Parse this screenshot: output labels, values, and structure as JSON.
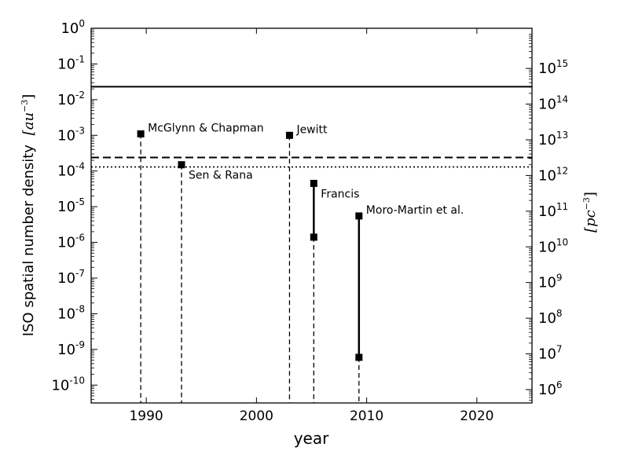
{
  "chart_data": {
    "type": "scatter",
    "xlabel": "year",
    "ylabel": "ISO spatial number density",
    "ylabel_unit": "[au",
    "ylabel_unit_exp": "−3",
    "ylabel_unit_close": "]",
    "y2label": "[pc",
    "y2label_exp": "−3",
    "y2label_close": "]",
    "xlim": [
      1985,
      2025
    ],
    "ylim_log10": [
      -10.5,
      0
    ],
    "y2lim_log10": [
      5.625,
      16.125
    ],
    "yscale": "log",
    "grid": false,
    "xticks": [
      {
        "value": 1990,
        "label": "1990"
      },
      {
        "value": 2000,
        "label": "2000"
      },
      {
        "value": 2010,
        "label": "2010"
      },
      {
        "value": 2020,
        "label": "2020"
      }
    ],
    "yticks": [
      {
        "exp": 0,
        "base": "10",
        "sup": "0"
      },
      {
        "exp": -1,
        "base": "10",
        "sup": "-1"
      },
      {
        "exp": -2,
        "base": "10",
        "sup": "-2"
      },
      {
        "exp": -3,
        "base": "10",
        "sup": "-3"
      },
      {
        "exp": -4,
        "base": "10",
        "sup": "-4"
      },
      {
        "exp": -5,
        "base": "10",
        "sup": "-5"
      },
      {
        "exp": -6,
        "base": "10",
        "sup": "-6"
      },
      {
        "exp": -7,
        "base": "10",
        "sup": "-7"
      },
      {
        "exp": -8,
        "base": "10",
        "sup": "-8"
      },
      {
        "exp": -9,
        "base": "10",
        "sup": "-9"
      },
      {
        "exp": -10,
        "base": "10",
        "sup": "-10"
      }
    ],
    "y2ticks": [
      {
        "exp": 15,
        "base": "10",
        "sup": "15"
      },
      {
        "exp": 14,
        "base": "10",
        "sup": "14"
      },
      {
        "exp": 13,
        "base": "10",
        "sup": "13"
      },
      {
        "exp": 12,
        "base": "10",
        "sup": "12"
      },
      {
        "exp": 11,
        "base": "10",
        "sup": "11"
      },
      {
        "exp": 10,
        "base": "10",
        "sup": "10"
      },
      {
        "exp": 9,
        "base": "10",
        "sup": "9"
      },
      {
        "exp": 8,
        "base": "10",
        "sup": "8"
      },
      {
        "exp": 7,
        "base": "10",
        "sup": "7"
      },
      {
        "exp": 6,
        "base": "10",
        "sup": "6"
      }
    ],
    "hlines": [
      {
        "y": 0.023,
        "style": "solid"
      },
      {
        "y": 0.00024,
        "style": "dashed"
      },
      {
        "y": 0.00013,
        "style": "dotted"
      }
    ],
    "series": [
      {
        "name": "McGlynn & Chapman",
        "x": 1989.5,
        "y": [
          0.0011
        ],
        "label_pos": "right"
      },
      {
        "name": "Sen & Rana",
        "x": 1993.2,
        "y": [
          0.00015
        ],
        "label_pos": "below-right"
      },
      {
        "name": "Jewitt",
        "x": 2003.0,
        "y": [
          0.001
        ],
        "label_pos": "right"
      },
      {
        "name": "Francis",
        "x": 2005.2,
        "y": [
          4.5e-05,
          1.4e-06
        ],
        "label_pos": "below-right"
      },
      {
        "name": "Moro-Martin et al.",
        "x": 2009.3,
        "y": [
          5.5e-06,
          6e-10
        ],
        "label_pos": "right"
      }
    ]
  }
}
